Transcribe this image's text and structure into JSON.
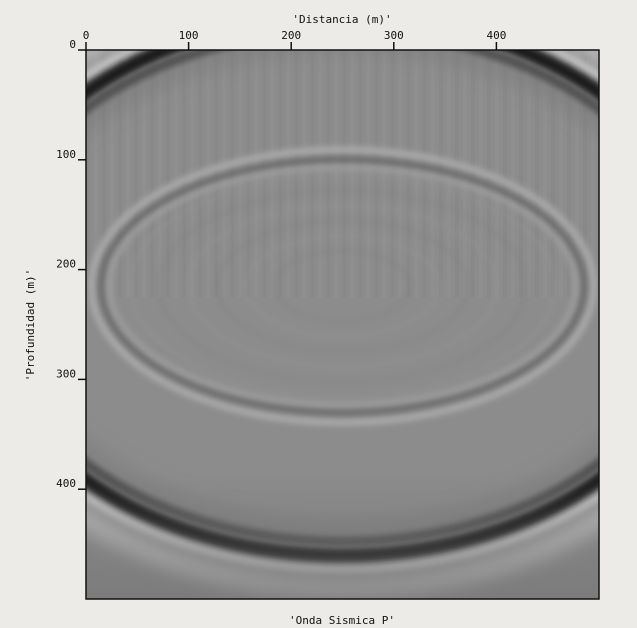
{
  "chart_data": {
    "type": "heatmap",
    "title": "'Distancia (m)'",
    "xlabel": "'Onda Sismica P'",
    "ylabel": "'Profundidad (m)'",
    "xlim": [
      0,
      500
    ],
    "ylim": [
      0,
      500
    ],
    "y_inverted": true,
    "x_ticks": [
      0,
      100,
      200,
      300,
      400
    ],
    "x_tick_labels": [
      "0",
      "100",
      "200",
      "300",
      "400"
    ],
    "y_ticks": [
      0,
      100,
      200,
      300,
      400
    ],
    "y_tick_labels": [
      "0",
      "100",
      "200",
      "300",
      "400"
    ],
    "colormap": "grayscale",
    "background_value_color": "#8c8c8c",
    "wavefronts": [
      {
        "center_x": 250,
        "center_z": 215,
        "radius_x": 360,
        "radius_z": 245,
        "amplitude": "strong"
      },
      {
        "center_x": 250,
        "center_z": 215,
        "radius_x": 235,
        "radius_z": 115,
        "amplitude": "weak"
      }
    ]
  }
}
